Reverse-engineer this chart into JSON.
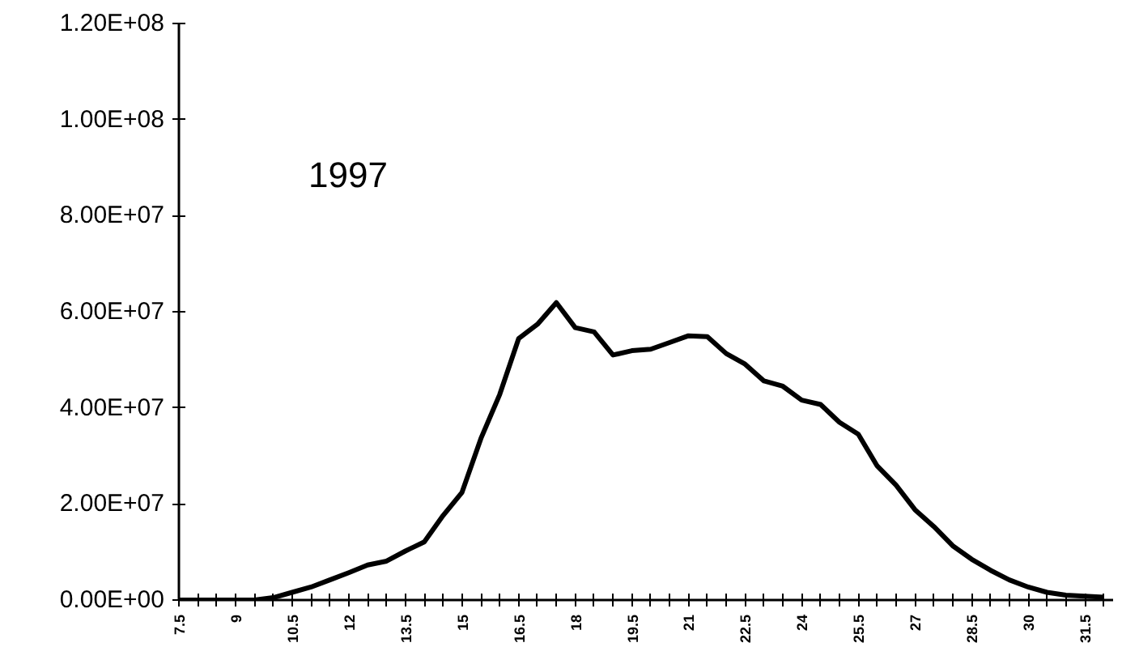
{
  "chart_data": {
    "type": "line",
    "categories": [
      "7.5",
      null,
      null,
      "9",
      null,
      null,
      "10.5",
      null,
      null,
      "12",
      null,
      null,
      "13.5",
      null,
      null,
      "15",
      null,
      null,
      "16.5",
      null,
      null,
      "18",
      null,
      null,
      "19.5",
      null,
      null,
      "21",
      null,
      null,
      "22.5",
      null,
      null,
      "24",
      null,
      null,
      "25.5",
      null,
      null,
      "27",
      null,
      null,
      "28.5",
      null,
      null,
      "30",
      null,
      null,
      "31.5",
      null
    ],
    "series": [
      {
        "color": "#000000",
        "values": [
          0,
          0,
          0,
          0,
          0,
          500000,
          1600000,
          2700000,
          4200000,
          5700000,
          7300000,
          8100000,
          10200000,
          12100000,
          17600000,
          22400000,
          33600000,
          42800000,
          54400000,
          57400000,
          61900000,
          56700000,
          55800000,
          51000000,
          51900000,
          52200000,
          53600000,
          55000000,
          54800000,
          51300000,
          49100000,
          45600000,
          44500000,
          41600000,
          40700000,
          37000000,
          34500000,
          27900000,
          23900000,
          18800000,
          15300000,
          11300000,
          8500000,
          6200000,
          4200000,
          2700000,
          1600000,
          1000000,
          800000,
          600000
        ]
      }
    ],
    "ylim": [
      0,
      120000000
    ],
    "yticks": [
      {
        "value": 0,
        "label": "0.00E+00"
      },
      {
        "value": 20000000,
        "label": "2.00E+07"
      },
      {
        "value": 40000000,
        "label": "4.00E+07"
      },
      {
        "value": 60000000,
        "label": "6.00E+07"
      },
      {
        "value": 80000000,
        "label": "8.00E+07"
      },
      {
        "value": 100000000,
        "label": "1.00E+08"
      },
      {
        "value": 120000000,
        "label": "1.20E+08"
      }
    ],
    "annotations": [
      "1997"
    ],
    "line_style": "solid"
  }
}
